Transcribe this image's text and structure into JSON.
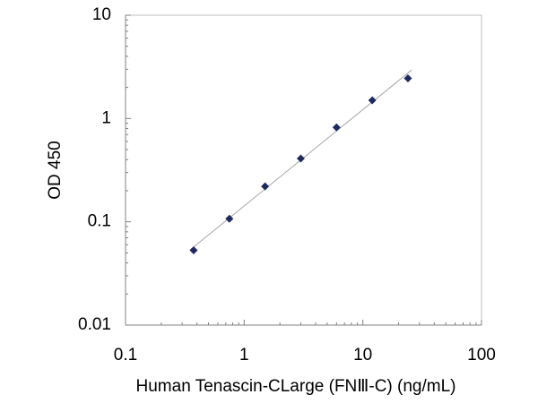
{
  "chart_data": {
    "type": "scatter",
    "x_label": "Human Tenascin-CLarge (FNⅢ-C)  (ng/mL)",
    "y_label": "OD 450",
    "x": [
      0.375,
      0.75,
      1.5,
      3,
      6,
      12,
      24
    ],
    "values": [
      0.053,
      0.107,
      0.22,
      0.41,
      0.82,
      1.5,
      2.45
    ],
    "color": "#1f2a5e",
    "trendline_color": "#a6a6a6",
    "trendline": true,
    "xscale": "log",
    "yscale": "log",
    "xlim": [
      0.1,
      100
    ],
    "ylim": [
      0.01,
      10
    ],
    "xticks": [
      0.1,
      1,
      10,
      100
    ],
    "yticks": [
      0.01,
      0.1,
      1,
      10
    ],
    "minor_ticks": true
  }
}
